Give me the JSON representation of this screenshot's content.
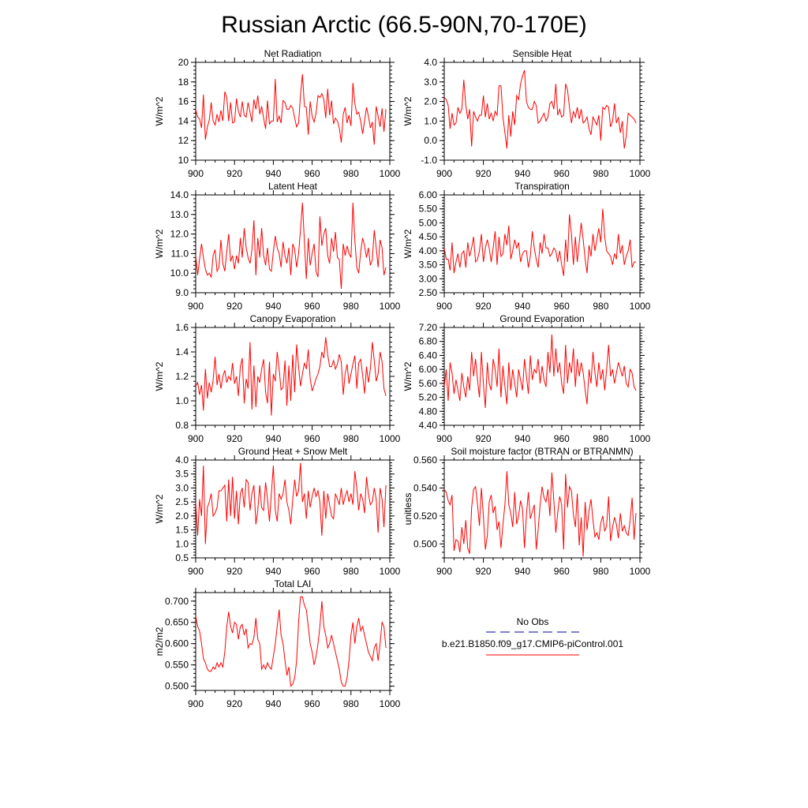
{
  "title": "Russian Arctic (66.5-90N,70-170E)",
  "legend": {
    "items": [
      {
        "label": "No Obs",
        "color": "#0000a0",
        "dash": true
      },
      {
        "label": "b.e21.B1850.f09_g17.CMIP6-piControl.001",
        "color": "#ff0000",
        "dash": false
      }
    ]
  },
  "chart_data": [
    {
      "type": "line",
      "title": "Net Radiation",
      "ylabel": "W/m^2",
      "xlim": [
        900,
        1000
      ],
      "xticks": [
        900,
        920,
        940,
        960,
        980,
        1000
      ],
      "ylim": [
        10,
        20
      ],
      "ytick_labels": [
        "10",
        "12",
        "14",
        "16",
        "18",
        "20"
      ],
      "x_start": 900,
      "values": [
        15.2,
        14.4,
        14.2,
        13.3,
        16.7,
        12.1,
        13.4,
        14.1,
        15.9,
        14.0,
        13.6,
        14.7,
        13.9,
        15.1,
        14.0,
        17.0,
        16.4,
        14.0,
        15.9,
        13.8,
        13.9,
        16.3,
        15.0,
        14.4,
        16.0,
        14.6,
        14.4,
        15.9,
        14.9,
        13.9,
        16.2,
        15.2,
        16.6,
        14.7,
        15.5,
        14.3,
        13.2,
        16.1,
        13.7,
        14.0,
        14.0,
        18.3,
        13.9,
        14.5,
        13.8,
        16.1,
        15.9,
        15.2,
        15.2,
        15.6,
        15.3,
        14.3,
        13.4,
        13.8,
        16.6,
        18.8,
        15.5,
        15.4,
        12.6,
        16.0,
        14.5,
        13.9,
        14.8,
        16.6,
        16.4,
        16.8,
        16.2,
        14.3,
        17.3,
        14.6,
        16.1,
        13.7,
        14.3,
        14.0,
        13.3,
        11.8,
        14.7,
        15.4,
        13.8,
        14.6,
        13.5,
        17.9,
        15.8,
        14.7,
        14.9,
        14.0,
        12.7,
        14.0,
        15.4,
        14.5,
        13.3,
        13.9,
        11.6,
        15.5,
        14.5,
        13.4,
        15.3,
        12.9,
        15.2
      ]
    },
    {
      "type": "line",
      "title": "Sensible Heat",
      "ylabel": "W/m^2",
      "xlim": [
        900,
        1000
      ],
      "xticks": [
        900,
        920,
        940,
        960,
        980,
        1000
      ],
      "ylim": [
        -1,
        4
      ],
      "ytick_labels": [
        "-1.0",
        "0.0",
        "1.0",
        "2.0",
        "3.0",
        "4.0"
      ],
      "x_start": 900,
      "values": [
        2.2,
        2.1,
        1.8,
        0.6,
        1.4,
        0.8,
        0.9,
        1.7,
        1.4,
        1.6,
        3.1,
        1.8,
        1.1,
        1.6,
        -0.3,
        1.5,
        1.2,
        1.0,
        1.3,
        1.3,
        2.3,
        1.2,
        1.9,
        1.1,
        1.4,
        1.0,
        1.5,
        1.3,
        2.8,
        2.8,
        1.2,
        0.4,
        -0.4,
        1.3,
        0.2,
        1.5,
        0.8,
        2.3,
        2.1,
        2.9,
        3.3,
        3.6,
        2.0,
        1.7,
        1.6,
        1.6,
        2.0,
        1.8,
        0.9,
        1.0,
        1.2,
        1.4,
        1.0,
        1.2,
        1.9,
        2.0,
        1.6,
        2.9,
        1.3,
        1.6,
        1.2,
        1.3,
        2.9,
        2.6,
        1.7,
        0.9,
        1.5,
        1.2,
        1.7,
        1.1,
        1.6,
        0.9,
        1.0,
        1.2,
        0.6,
        0.3,
        1.2,
        1.0,
        0.8,
        1.3,
        0.0,
        1.7,
        1.6,
        1.8,
        1.7,
        0.7,
        1.0,
        1.9,
        0.9,
        1.2,
        0.4,
        1.0,
        -0.4,
        0.2,
        1.4,
        1.3,
        1.2,
        1.1,
        0.9
      ]
    },
    {
      "type": "line",
      "title": "Latent Heat",
      "ylabel": "W/m^2",
      "xlim": [
        900,
        1000
      ],
      "xticks": [
        900,
        920,
        940,
        960,
        980,
        1000
      ],
      "ylim": [
        9,
        14
      ],
      "ytick_labels": [
        "9.0",
        "10.0",
        "11.0",
        "12.0",
        "13.0",
        "14.0"
      ],
      "x_start": 900,
      "values": [
        10.9,
        9.9,
        10.7,
        11.5,
        10.8,
        10.2,
        9.9,
        10.0,
        9.8,
        10.9,
        11.2,
        10.1,
        10.3,
        11.7,
        10.5,
        10.1,
        11.1,
        12.0,
        10.6,
        10.9,
        10.2,
        10.9,
        10.5,
        11.8,
        10.8,
        12.3,
        11.3,
        10.8,
        10.5,
        11.2,
        12.7,
        9.9,
        11.8,
        10.8,
        12.3,
        10.9,
        10.4,
        11.3,
        10.2,
        10.1,
        11.1,
        11.9,
        11.3,
        11.0,
        10.3,
        11.6,
        10.9,
        10.5,
        11.3,
        9.9,
        11.5,
        11.2,
        10.3,
        11.0,
        12.2,
        13.6,
        11.6,
        9.7,
        11.8,
        10.4,
        11.0,
        11.5,
        10.1,
        9.8,
        12.9,
        11.4,
        12.0,
        12.3,
        10.9,
        10.5,
        11.8,
        11.1,
        12.1,
        10.8,
        10.7,
        9.2,
        11.5,
        10.9,
        11.4,
        11.0,
        10.8,
        13.6,
        11.7,
        10.3,
        10.0,
        11.1,
        11.8,
        11.4,
        10.8,
        11.3,
        10.4,
        10.7,
        12.2,
        11.3,
        10.3,
        11.7,
        11.3,
        9.9,
        10.3
      ]
    },
    {
      "type": "line",
      "title": "Transpiration",
      "ylabel": "W/m^2",
      "xlim": [
        900,
        1000
      ],
      "xticks": [
        900,
        920,
        940,
        960,
        980,
        1000
      ],
      "ylim": [
        2.5,
        6.0
      ],
      "ytick_labels": [
        "2.50",
        "3.00",
        "3.50",
        "4.00",
        "4.50",
        "5.00",
        "5.50",
        "6.00"
      ],
      "x_start": 900,
      "values": [
        4.1,
        3.7,
        3.7,
        3.3,
        4.3,
        3.2,
        3.6,
        3.9,
        3.4,
        3.9,
        4.0,
        3.4,
        4.3,
        3.8,
        4.1,
        4.5,
        3.6,
        3.7,
        4.0,
        4.6,
        3.6,
        4.1,
        4.4,
        4.1,
        3.6,
        4.1,
        4.7,
        3.5,
        4.5,
        3.8,
        3.9,
        4.6,
        4.2,
        4.9,
        3.7,
        4.0,
        4.4,
        4.1,
        4.3,
        3.6,
        3.9,
        4.0,
        4.0,
        3.4,
        3.8,
        4.7,
        4.1,
        3.7,
        3.4,
        4.3,
        3.9,
        4.6,
        4.1,
        4.1,
        3.8,
        3.9,
        4.1,
        4.0,
        3.6,
        4.0,
        3.5,
        3.1,
        4.4,
        3.6,
        5.3,
        4.6,
        3.5,
        4.5,
        3.6,
        4.3,
        5.0,
        4.4,
        3.7,
        3.2,
        4.2,
        3.8,
        4.6,
        4.0,
        4.4,
        4.8,
        4.3,
        5.5,
        4.5,
        4.0,
        3.9,
        3.8,
        3.5,
        3.9,
        3.7,
        4.6,
        3.9,
        4.2,
        3.5,
        3.8,
        4.0,
        4.4,
        3.4,
        3.6,
        3.6
      ]
    },
    {
      "type": "line",
      "title": "Canopy Evaporation",
      "ylabel": "W/m^2",
      "xlim": [
        900,
        1000
      ],
      "xticks": [
        900,
        920,
        940,
        960,
        980,
        1000
      ],
      "ylim": [
        0.8,
        1.6
      ],
      "ytick_labels": [
        "0.8",
        "1.0",
        "1.2",
        "1.4",
        "1.6"
      ],
      "x_start": 900,
      "values": [
        1.12,
        1.15,
        1.05,
        1.13,
        0.92,
        1.26,
        1.02,
        1.15,
        1.07,
        1.17,
        1.36,
        1.13,
        1.22,
        1.1,
        1.2,
        1.25,
        1.15,
        1.2,
        1.17,
        1.31,
        1.14,
        1.2,
        1.04,
        1.28,
        1.35,
        0.98,
        1.18,
        1.1,
        1.48,
        0.93,
        1.29,
        0.95,
        1.2,
        1.15,
        1.26,
        1.34,
        1.07,
        0.98,
        1.32,
        0.88,
        1.22,
        1.16,
        1.4,
        1.26,
        1.09,
        1.11,
        1.33,
        0.96,
        1.29,
        1.0,
        1.38,
        1.07,
        1.46,
        1.28,
        1.12,
        1.22,
        1.31,
        1.26,
        1.42,
        1.18,
        1.08,
        1.13,
        1.18,
        1.22,
        1.28,
        1.4,
        1.35,
        1.52,
        1.38,
        1.28,
        1.28,
        1.33,
        1.26,
        1.3,
        1.38,
        1.32,
        1.05,
        1.22,
        1.3,
        1.14,
        1.22,
        1.3,
        1.37,
        1.1,
        1.31,
        1.34,
        1.21,
        1.06,
        1.28,
        1.15,
        1.26,
        1.48,
        1.33,
        1.16,
        1.22,
        1.4,
        1.32,
        1.1,
        1.04
      ]
    },
    {
      "type": "line",
      "title": "Ground Evaporation",
      "ylabel": "W/m^2",
      "xlim": [
        900,
        1000
      ],
      "xticks": [
        900,
        920,
        940,
        960,
        980,
        1000
      ],
      "ylim": [
        4.4,
        7.2
      ],
      "ytick_labels": [
        "4.40",
        "4.80",
        "5.20",
        "5.60",
        "6.00",
        "6.40",
        "6.80",
        "7.20"
      ],
      "x_start": 900,
      "values": [
        5.5,
        6.0,
        5.1,
        6.2,
        5.9,
        5.3,
        5.7,
        5.4,
        5.1,
        5.9,
        5.5,
        5.2,
        5.8,
        5.4,
        6.5,
        5.8,
        6.3,
        5.7,
        5.2,
        6.5,
        5.6,
        4.9,
        6.2,
        5.6,
        5.4,
        6.3,
        6.0,
        5.5,
        6.6,
        5.2,
        6.1,
        5.5,
        5.0,
        6.2,
        5.4,
        6.0,
        5.6,
        5.2,
        6.0,
        5.7,
        5.4,
        6.3,
        5.8,
        5.3,
        6.4,
        5.7,
        6.0,
        5.9,
        6.3,
        5.6,
        6.1,
        5.7,
        5.5,
        6.5,
        5.9,
        7.0,
        5.8,
        6.6,
        5.9,
        6.2,
        5.6,
        5.3,
        6.7,
        5.6,
        6.2,
        5.9,
        6.6,
        5.5,
        6.3,
        5.8,
        6.2,
        5.9,
        5.4,
        5.0,
        6.0,
        5.6,
        6.5,
        5.9,
        5.5,
        6.2,
        5.7,
        6.0,
        5.4,
        6.0,
        6.7,
        5.8,
        6.0,
        5.6,
        5.9,
        6.2,
        6.0,
        5.8,
        6.1,
        5.6,
        5.5,
        6.0,
        5.9,
        5.5,
        5.4
      ]
    },
    {
      "type": "line",
      "title": "Ground Heat + Snow Melt",
      "ylabel": "W/m^2",
      "xlim": [
        900,
        1000
      ],
      "xticks": [
        900,
        920,
        940,
        960,
        980,
        1000
      ],
      "ylim": [
        0.5,
        4.0
      ],
      "ytick_labels": [
        "0.5",
        "1.0",
        "1.5",
        "2.0",
        "2.5",
        "3.0",
        "3.5",
        "4.0"
      ],
      "x_start": 900,
      "values": [
        2.5,
        1.3,
        2.6,
        2.0,
        3.8,
        1.0,
        2.3,
        2.5,
        2.8,
        2.0,
        2.1,
        2.3,
        2.9,
        2.9,
        3.0,
        3.1,
        1.8,
        3.3,
        2.0,
        3.4,
        1.9,
        2.9,
        1.7,
        2.8,
        3.0,
        2.3,
        3.3,
        3.2,
        2.2,
        2.8,
        3.1,
        1.7,
        2.2,
        3.1,
        2.3,
        2.2,
        3.2,
        2.6,
        1.8,
        2.8,
        3.8,
        2.2,
        1.8,
        2.8,
        2.6,
        2.8,
        3.3,
        2.5,
        2.2,
        1.7,
        2.6,
        3.3,
        2.7,
        2.9,
        3.9,
        2.5,
        2.8,
        1.9,
        2.9,
        2.3,
        2.7,
        3.0,
        2.7,
        2.9,
        2.5,
        1.3,
        2.9,
        1.9,
        2.8,
        2.4,
        2.0,
        1.9,
        2.8,
        2.6,
        2.4,
        3.0,
        2.4,
        2.7,
        2.9,
        2.5,
        2.8,
        2.4,
        3.6,
        3.0,
        2.2,
        2.8,
        2.6,
        2.1,
        3.4,
        2.8,
        2.4,
        2.5,
        3.0,
        2.6,
        1.4,
        3.0,
        2.6,
        1.6,
        3.1
      ]
    },
    {
      "type": "line",
      "title": "Soil moisture factor (BTRAN or BTRANMN)",
      "ylabel": "unitless",
      "xlim": [
        900,
        1000
      ],
      "xticks": [
        900,
        920,
        940,
        960,
        980,
        1000
      ],
      "ylim": [
        0.49,
        0.56
      ],
      "ytick_labels": [
        "0.500",
        "0.520",
        "0.540",
        "0.560"
      ],
      "x_start": 900,
      "values": [
        0.539,
        0.537,
        0.531,
        0.528,
        0.535,
        0.495,
        0.503,
        0.502,
        0.494,
        0.512,
        0.5,
        0.517,
        0.497,
        0.493,
        0.526,
        0.539,
        0.541,
        0.528,
        0.513,
        0.54,
        0.52,
        0.496,
        0.506,
        0.53,
        0.535,
        0.522,
        0.527,
        0.51,
        0.516,
        0.497,
        0.514,
        0.528,
        0.552,
        0.528,
        0.522,
        0.512,
        0.537,
        0.514,
        0.52,
        0.531,
        0.525,
        0.497,
        0.521,
        0.537,
        0.518,
        0.523,
        0.528,
        0.496,
        0.51,
        0.528,
        0.541,
        0.533,
        0.53,
        0.539,
        0.52,
        0.551,
        0.531,
        0.508,
        0.522,
        0.534,
        0.528,
        0.496,
        0.55,
        0.526,
        0.541,
        0.538,
        0.521,
        0.512,
        0.536,
        0.499,
        0.519,
        0.491,
        0.53,
        0.51,
        0.524,
        0.532,
        0.517,
        0.505,
        0.508,
        0.503,
        0.515,
        0.52,
        0.509,
        0.513,
        0.534,
        0.502,
        0.512,
        0.519,
        0.514,
        0.504,
        0.522,
        0.509,
        0.513,
        0.508,
        0.506,
        0.517,
        0.533,
        0.503,
        0.522
      ]
    },
    {
      "type": "line",
      "title": "Total LAI",
      "ylabel": "m2/m2",
      "xlim": [
        900,
        1000
      ],
      "xticks": [
        900,
        920,
        940,
        960,
        980,
        1000
      ],
      "ylim": [
        0.49,
        0.72
      ],
      "ytick_labels": [
        "0.500",
        "0.550",
        "0.600",
        "0.650",
        "0.700"
      ],
      "x_start": 900,
      "values": [
        0.665,
        0.64,
        0.63,
        0.6,
        0.565,
        0.555,
        0.54,
        0.535,
        0.535,
        0.545,
        0.54,
        0.555,
        0.545,
        0.555,
        0.545,
        0.58,
        0.64,
        0.675,
        0.64,
        0.625,
        0.65,
        0.645,
        0.61,
        0.64,
        0.645,
        0.62,
        0.635,
        0.59,
        0.6,
        0.598,
        0.615,
        0.66,
        0.61,
        0.6,
        0.54,
        0.55,
        0.54,
        0.555,
        0.545,
        0.54,
        0.57,
        0.6,
        0.64,
        0.68,
        0.62,
        0.6,
        0.56,
        0.525,
        0.545,
        0.5,
        0.505,
        0.52,
        0.56,
        0.65,
        0.71,
        0.71,
        0.69,
        0.68,
        0.64,
        0.6,
        0.58,
        0.55,
        0.57,
        0.6,
        0.64,
        0.7,
        0.64,
        0.62,
        0.59,
        0.6,
        0.62,
        0.6,
        0.58,
        0.56,
        0.54,
        0.51,
        0.5,
        0.5,
        0.52,
        0.56,
        0.62,
        0.65,
        0.6,
        0.64,
        0.66,
        0.63,
        0.64,
        0.62,
        0.6,
        0.58,
        0.57,
        0.56,
        0.59,
        0.6,
        0.56,
        0.6,
        0.65,
        0.64,
        0.59
      ]
    }
  ]
}
